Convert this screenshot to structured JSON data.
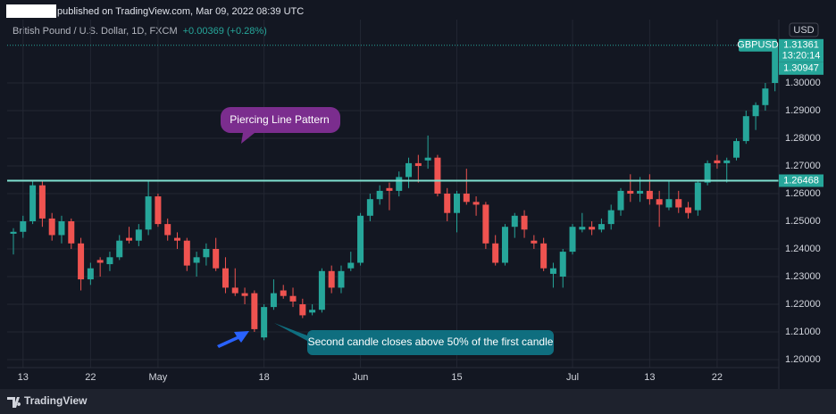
{
  "header": {
    "published": "published on TradingView.com, Mar 09, 2022 08:39 UTC",
    "symbol": "British Pound / U.S. Dollar, 1D, FXCM",
    "change": "+0.00369 (+0.28%)",
    "currency": "USD"
  },
  "footer": {
    "brand": "TradingView"
  },
  "chart_data": {
    "type": "candlestick",
    "up_color": "#26a69a",
    "down_color": "#ef5350",
    "grid": true,
    "open": [
      1.2455,
      1.2462,
      1.25,
      1.263,
      1.251,
      1.245,
      1.25,
      1.242,
      1.229,
      1.236,
      1.2345,
      1.237,
      1.244,
      1.243,
      1.247,
      1.259,
      1.249,
      1.244,
      1.243,
      1.235,
      1.237,
      1.24,
      1.233,
      1.226,
      1.224,
      1.224,
      1.208,
      1.219,
      1.225,
      1.223,
      1.22,
      1.217,
      1.218,
      1.232,
      1.226,
      1.233,
      1.235,
      1.252,
      1.258,
      1.262,
      1.261,
      1.266,
      1.271,
      1.272,
      1.273,
      1.26,
      1.253,
      1.26,
      1.257,
      1.256,
      1.242,
      1.235,
      1.248,
      1.252,
      1.243,
      1.242,
      1.231,
      1.23,
      1.239,
      1.247,
      1.248,
      1.247,
      1.249,
      1.254,
      1.261,
      1.26,
      1.261,
      1.258,
      1.255,
      1.258,
      1.255,
      1.254,
      1.264,
      1.272,
      1.271,
      1.273,
      1.279,
      1.288,
      1.292,
      1.3
    ],
    "high": [
      1.2475,
      1.252,
      1.265,
      1.265,
      1.253,
      1.252,
      1.251,
      1.244,
      1.235,
      1.237,
      1.239,
      1.245,
      1.248,
      1.249,
      1.265,
      1.26,
      1.251,
      1.246,
      1.244,
      1.239,
      1.242,
      1.244,
      1.237,
      1.233,
      1.226,
      1.225,
      1.22,
      1.229,
      1.227,
      1.226,
      1.222,
      1.22,
      1.233,
      1.234,
      1.234,
      1.239,
      1.253,
      1.26,
      1.263,
      1.264,
      1.268,
      1.273,
      1.274,
      1.281,
      1.274,
      1.262,
      1.261,
      1.269,
      1.259,
      1.257,
      1.245,
      1.249,
      1.253,
      1.254,
      1.245,
      1.244,
      1.235,
      1.24,
      1.249,
      1.253,
      1.25,
      1.251,
      1.256,
      1.262,
      1.267,
      1.266,
      1.267,
      1.261,
      1.265,
      1.261,
      1.257,
      1.265,
      1.272,
      1.274,
      1.273,
      1.28,
      1.29,
      1.293,
      1.3,
      1.315
    ],
    "low": [
      1.238,
      1.244,
      1.249,
      1.248,
      1.243,
      1.242,
      1.24,
      1.225,
      1.227,
      1.23,
      1.232,
      1.236,
      1.242,
      1.241,
      1.245,
      1.248,
      1.243,
      1.24,
      1.232,
      1.23,
      1.234,
      1.232,
      1.224,
      1.223,
      1.22,
      1.21,
      1.207,
      1.218,
      1.222,
      1.219,
      1.215,
      1.216,
      1.217,
      1.224,
      1.224,
      1.232,
      1.234,
      1.25,
      1.256,
      1.254,
      1.259,
      1.262,
      1.264,
      1.269,
      1.259,
      1.25,
      1.246,
      1.256,
      1.252,
      1.24,
      1.234,
      1.234,
      1.244,
      1.244,
      1.24,
      1.232,
      1.226,
      1.226,
      1.238,
      1.246,
      1.245,
      1.246,
      1.247,
      1.252,
      1.257,
      1.257,
      1.256,
      1.248,
      1.254,
      1.253,
      1.251,
      1.252,
      1.263,
      1.269,
      1.264,
      1.272,
      1.278,
      1.283,
      1.29,
      1.297
    ],
    "close": [
      1.2462,
      1.25,
      1.263,
      1.251,
      1.245,
      1.25,
      1.242,
      1.229,
      1.233,
      1.235,
      1.237,
      1.243,
      1.243,
      1.247,
      1.259,
      1.249,
      1.245,
      1.243,
      1.234,
      1.237,
      1.24,
      1.233,
      1.226,
      1.224,
      1.223,
      1.211,
      1.219,
      1.224,
      1.223,
      1.221,
      1.216,
      1.218,
      1.232,
      1.226,
      1.232,
      1.235,
      1.252,
      1.258,
      1.261,
      1.261,
      1.266,
      1.271,
      1.27,
      1.273,
      1.26,
      1.253,
      1.26,
      1.257,
      1.256,
      1.242,
      1.235,
      1.248,
      1.252,
      1.247,
      1.242,
      1.233,
      1.233,
      1.239,
      1.248,
      1.248,
      1.247,
      1.249,
      1.254,
      1.261,
      1.26,
      1.261,
      1.258,
      1.256,
      1.258,
      1.255,
      1.253,
      1.264,
      1.271,
      1.271,
      1.272,
      1.279,
      1.288,
      1.292,
      1.298,
      1.3136
    ],
    "xlim": [
      -0.65,
      79.4
    ],
    "xticks": [
      {
        "value": 1,
        "label": "13"
      },
      {
        "value": 8,
        "label": "22"
      },
      {
        "value": 15,
        "label": "May"
      },
      {
        "value": 26,
        "label": "18"
      },
      {
        "value": 36,
        "label": "Jun"
      },
      {
        "value": 46,
        "label": "15"
      },
      {
        "value": 58,
        "label": "Jul"
      },
      {
        "value": 66,
        "label": "13"
      },
      {
        "value": 73,
        "label": "22"
      }
    ],
    "ylim": [
      1.1971,
      1.3229
    ],
    "yticks": [
      {
        "value": 1.2,
        "label": "1.20000"
      },
      {
        "value": 1.21,
        "label": "1.21000"
      },
      {
        "value": 1.22,
        "label": "1.22000"
      },
      {
        "value": 1.23,
        "label": "1.23000"
      },
      {
        "value": 1.24,
        "label": "1.24000"
      },
      {
        "value": 1.25,
        "label": "1.25000"
      },
      {
        "value": 1.26,
        "label": "1.26000"
      },
      {
        "value": 1.27,
        "label": "1.27000"
      },
      {
        "value": 1.28,
        "label": "1.28000"
      },
      {
        "value": 1.29,
        "label": "1.29000"
      },
      {
        "value": 1.3,
        "label": "1.30000"
      }
    ],
    "level": {
      "value": 1.26468,
      "label": "1.26468",
      "color": "#7fe0d0"
    },
    "last_price": {
      "value": 1.31361,
      "label": "1.31361",
      "symbol": "GBPUSD",
      "countdown": "13:20:14"
    },
    "current_price": {
      "value": 1.30947,
      "label": "1.30947"
    },
    "annotations": [
      "Piercing Line Pattern",
      "Second candle closes above 50% of the first candle"
    ]
  }
}
